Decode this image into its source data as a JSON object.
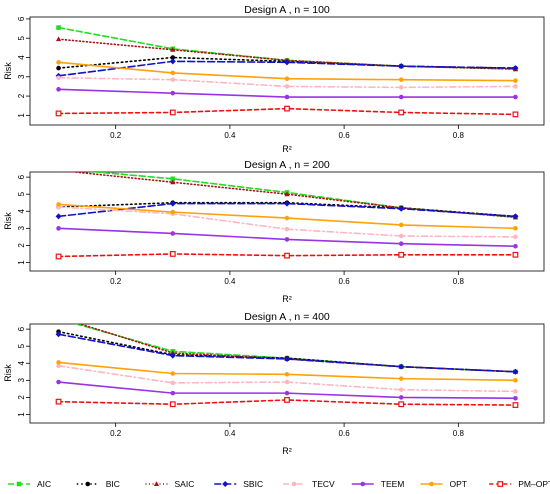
{
  "figure": {
    "legend": [
      {
        "name": "AIC",
        "color": "#22dd22",
        "dash": "6,3",
        "marker": "square"
      },
      {
        "name": "BIC",
        "color": "#000000",
        "dash": "1.5,3",
        "marker": "circle"
      },
      {
        "name": "SAIC",
        "color": "#aa1111",
        "dash": "1,2.5",
        "marker": "triangle"
      },
      {
        "name": "SBIC",
        "color": "#1111cc",
        "dash": "7,3",
        "marker": "diamond"
      },
      {
        "name": "TECV",
        "color": "#ffb6c1",
        "dash": "6,3,1.5,3",
        "marker": "circle"
      },
      {
        "name": "TEEM",
        "color": "#9a33e6",
        "dash": "none",
        "marker": "circle"
      },
      {
        "name": "OPT",
        "color": "#ffa20a",
        "dash": "none",
        "marker": "circle"
      },
      {
        "name": "PM–OPT",
        "color": "#ee1111",
        "dash": "4,3",
        "marker": "square-open"
      }
    ]
  },
  "chart_data": [
    {
      "type": "line",
      "title": "Design A , n = 100",
      "xlabel": "R²",
      "ylabel": "Risk",
      "xlim": [
        0.05,
        0.95
      ],
      "ylim": [
        0.5,
        6.1
      ],
      "xticks": [
        "0.2",
        "0.4",
        "0.6",
        "0.8"
      ],
      "yticks": [
        "1",
        "2",
        "3",
        "4",
        "5",
        "6"
      ],
      "x": [
        0.1,
        0.3,
        0.5,
        0.7,
        0.9
      ],
      "series": [
        {
          "name": "AIC",
          "values": [
            5.55,
            4.45,
            3.85,
            3.55,
            3.4
          ]
        },
        {
          "name": "BIC",
          "values": [
            3.45,
            4.0,
            3.8,
            3.55,
            3.45
          ]
        },
        {
          "name": "SAIC",
          "values": [
            4.95,
            4.4,
            3.85,
            3.55,
            3.4
          ]
        },
        {
          "name": "SBIC",
          "values": [
            3.05,
            3.8,
            3.75,
            3.55,
            3.45
          ]
        },
        {
          "name": "TECV",
          "values": [
            2.95,
            2.85,
            2.5,
            2.45,
            2.5
          ]
        },
        {
          "name": "TEEM",
          "values": [
            2.35,
            2.15,
            1.95,
            1.95,
            1.95
          ]
        },
        {
          "name": "OPT",
          "values": [
            3.75,
            3.2,
            2.9,
            2.85,
            2.8
          ]
        },
        {
          "name": "PM–OPT",
          "values": [
            1.1,
            1.15,
            1.35,
            1.15,
            1.05
          ]
        }
      ]
    },
    {
      "type": "line",
      "title": "Design A , n = 200",
      "xlabel": "R²",
      "ylabel": "Risk",
      "xlim": [
        0.05,
        0.95
      ],
      "ylim": [
        0.5,
        6.3
      ],
      "xticks": [
        "0.2",
        "0.4",
        "0.6",
        "0.8"
      ],
      "yticks": [
        "1",
        "2",
        "3",
        "4",
        "5",
        "6"
      ],
      "x": [
        0.1,
        0.3,
        0.5,
        0.7,
        0.9
      ],
      "series": [
        {
          "name": "AIC",
          "values": [
            6.5,
            5.9,
            5.1,
            4.2,
            3.65
          ]
        },
        {
          "name": "BIC",
          "values": [
            4.25,
            4.5,
            4.5,
            4.2,
            3.7
          ]
        },
        {
          "name": "SAIC",
          "values": [
            6.4,
            5.7,
            5.0,
            4.2,
            3.65
          ]
        },
        {
          "name": "SBIC",
          "values": [
            3.7,
            4.45,
            4.45,
            4.15,
            3.7
          ]
        },
        {
          "name": "TECV",
          "values": [
            4.25,
            3.85,
            2.95,
            2.55,
            2.5
          ]
        },
        {
          "name": "TEEM",
          "values": [
            3.0,
            2.7,
            2.35,
            2.1,
            1.95
          ]
        },
        {
          "name": "OPT",
          "values": [
            4.4,
            3.95,
            3.6,
            3.2,
            3.0
          ]
        },
        {
          "name": "PM–OPT",
          "values": [
            1.35,
            1.5,
            1.4,
            1.45,
            1.45
          ]
        }
      ]
    },
    {
      "type": "line",
      "title": "Design A , n = 400",
      "xlabel": "R²",
      "ylabel": "Risk",
      "xlim": [
        0.05,
        0.95
      ],
      "ylim": [
        0.5,
        6.3
      ],
      "xticks": [
        "0.2",
        "0.4",
        "0.6",
        "0.8"
      ],
      "yticks": [
        "1",
        "2",
        "3",
        "4",
        "5",
        "6"
      ],
      "x": [
        0.1,
        0.3,
        0.5,
        0.7,
        0.9
      ],
      "series": [
        {
          "name": "AIC",
          "values": [
            6.6,
            4.7,
            4.3,
            3.8,
            3.5
          ]
        },
        {
          "name": "BIC",
          "values": [
            5.85,
            4.5,
            4.3,
            3.8,
            3.5
          ]
        },
        {
          "name": "SAIC",
          "values": [
            6.7,
            4.6,
            4.25,
            3.8,
            3.5
          ]
        },
        {
          "name": "SBIC",
          "values": [
            5.7,
            4.45,
            4.25,
            3.8,
            3.5
          ]
        },
        {
          "name": "TECV",
          "values": [
            3.85,
            2.85,
            2.9,
            2.45,
            2.35
          ]
        },
        {
          "name": "TEEM",
          "values": [
            2.9,
            2.25,
            2.25,
            2.0,
            1.95
          ]
        },
        {
          "name": "OPT",
          "values": [
            4.05,
            3.4,
            3.35,
            3.1,
            3.0
          ]
        },
        {
          "name": "PM–OPT",
          "values": [
            1.75,
            1.6,
            1.85,
            1.6,
            1.55
          ]
        }
      ]
    }
  ]
}
